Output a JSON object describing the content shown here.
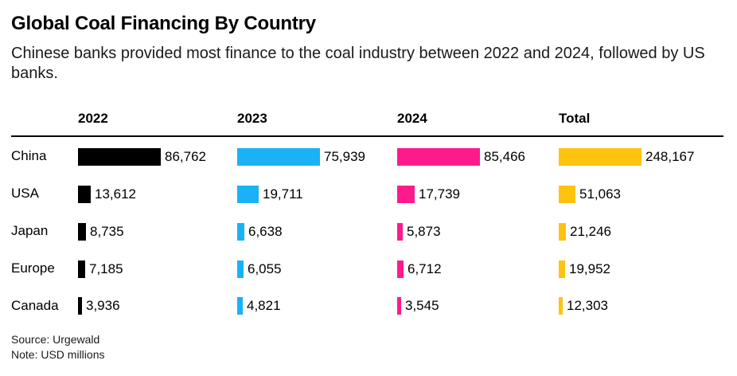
{
  "title": "Global Coal Financing By Country",
  "subtitle": "Chinese banks provided most finance to the coal industry between 2022 and 2024, followed by US banks.",
  "source": "Source: Urgewald",
  "note": "Note: USD millions",
  "chart_data": {
    "type": "bar",
    "orientation": "horizontal",
    "title": "Global Coal Financing By Country",
    "unit": "USD millions",
    "categories": [
      "China",
      "USA",
      "Japan",
      "Europe",
      "Canada"
    ],
    "series": [
      {
        "name": "2022",
        "color": "#000000",
        "values": [
          86762,
          13612,
          8735,
          7185,
          3936
        ],
        "labels": [
          "86,762",
          "13,612",
          "8,735",
          "7,185",
          "3,936"
        ]
      },
      {
        "name": "2023",
        "color": "#1ab2f5",
        "values": [
          75939,
          19711,
          6638,
          6055,
          4821
        ],
        "labels": [
          "75,939",
          "19,711",
          "6,638",
          "6,055",
          "4,821"
        ]
      },
      {
        "name": "2024",
        "color": "#ff1a8c",
        "values": [
          85466,
          17739,
          5873,
          6712,
          3545
        ],
        "labels": [
          "85,466",
          "17,739",
          "5,873",
          "6,712",
          "3,545"
        ]
      },
      {
        "name": "Total",
        "color": "#ffc20e",
        "values": [
          248167,
          51063,
          21246,
          19952,
          12303
        ],
        "labels": [
          "248,167",
          "51,063",
          "21,246",
          "19,952",
          "12,303"
        ]
      }
    ]
  }
}
